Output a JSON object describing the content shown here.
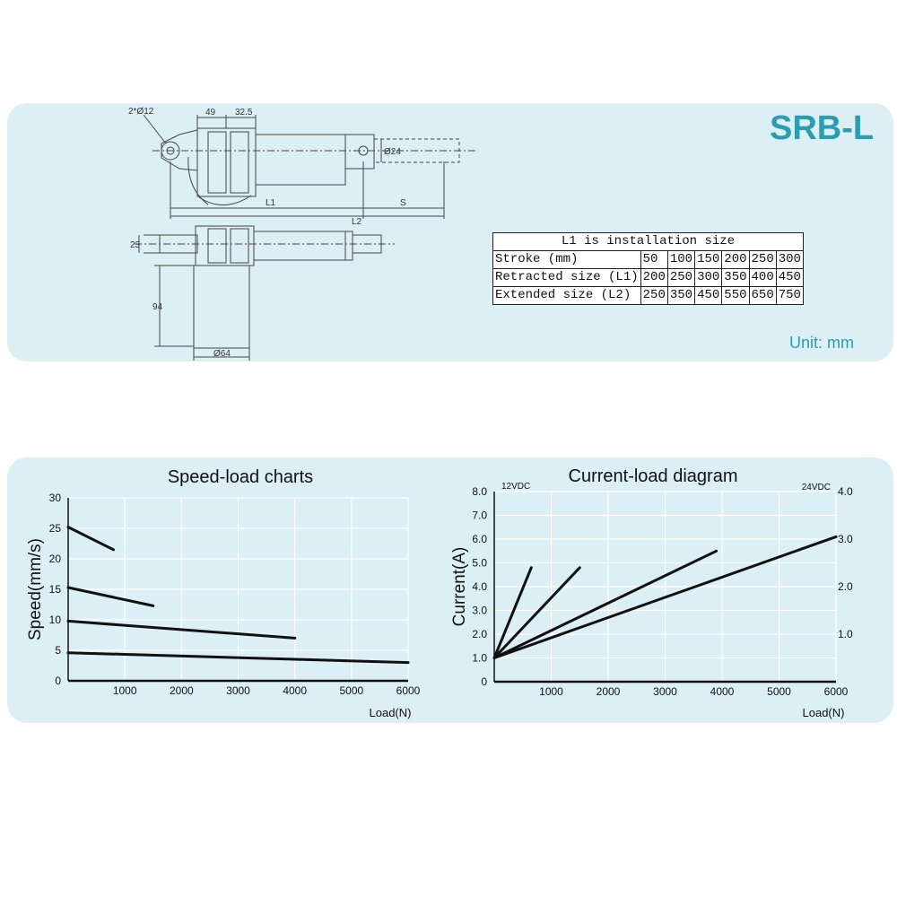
{
  "product": {
    "model": "SRB-L",
    "unit": "Unit: mm"
  },
  "drawing": {
    "labels": [
      "2*Ø12",
      "49",
      "32.5",
      "Ø24",
      "L1",
      "S",
      "L2",
      "23",
      "94",
      "Ø64"
    ]
  },
  "spec_table": {
    "caption": "L1 is installation size",
    "rows": [
      {
        "label": "Stroke (mm)",
        "values": [
          "50",
          "100",
          "150",
          "200",
          "250",
          "300"
        ]
      },
      {
        "label": "Retracted size (L1)",
        "values": [
          "200",
          "250",
          "300",
          "350",
          "400",
          "450"
        ]
      },
      {
        "label": "Extended size (L2)",
        "values": [
          "250",
          "350",
          "450",
          "550",
          "650",
          "750"
        ]
      }
    ]
  },
  "chart_data": [
    {
      "type": "line",
      "title": "Speed-load charts",
      "xlabel": "Load(N)",
      "ylabel": "Speed(mm/s)",
      "xlim": [
        0,
        6000
      ],
      "ylim": [
        0,
        30
      ],
      "xticks": [
        "1000",
        "2000",
        "3000",
        "4000",
        "5000",
        "6000"
      ],
      "yticks": [
        "0",
        "5",
        "10",
        "15",
        "20",
        "25",
        "30"
      ],
      "grid": true,
      "series": [
        {
          "points": [
            [
              0,
              25.2
            ],
            [
              800,
              21.5
            ]
          ]
        },
        {
          "points": [
            [
              0,
              15.3
            ],
            [
              1500,
              12.3
            ]
          ]
        },
        {
          "points": [
            [
              0,
              9.8
            ],
            [
              4000,
              7.0
            ]
          ]
        },
        {
          "points": [
            [
              0,
              4.6
            ],
            [
              6000,
              3.0
            ]
          ]
        }
      ]
    },
    {
      "type": "line",
      "title": "Current-load diagram",
      "xlabel": "Load(N)",
      "ylabel": "Current(A)",
      "xlim": [
        0,
        6000
      ],
      "ylim": [
        0,
        8
      ],
      "xticks": [
        "1000",
        "2000",
        "3000",
        "4000",
        "5000",
        "6000"
      ],
      "yticks": [
        "0",
        "1.0",
        "2.0",
        "3.0",
        "4.0",
        "5.0",
        "6.0",
        "7.0",
        "8.0"
      ],
      "y2lim": [
        0,
        4
      ],
      "y2ticks": [
        "1.0",
        "2.0",
        "3.0",
        "4.0"
      ],
      "left_axis_note": "12VDC",
      "right_axis_note": "24VDC",
      "grid": true,
      "series": [
        {
          "points": [
            [
              0,
              1.0
            ],
            [
              650,
              4.8
            ]
          ]
        },
        {
          "points": [
            [
              0,
              1.0
            ],
            [
              1500,
              4.8
            ]
          ]
        },
        {
          "points": [
            [
              0,
              1.0
            ],
            [
              3900,
              5.5
            ]
          ]
        },
        {
          "points": [
            [
              0,
              1.0
            ],
            [
              6000,
              6.1
            ]
          ]
        }
      ]
    }
  ],
  "colors": {
    "panel": "#dbeff4",
    "accent": "#2b9db3",
    "line": "#111111",
    "grid": "#ffffff"
  }
}
